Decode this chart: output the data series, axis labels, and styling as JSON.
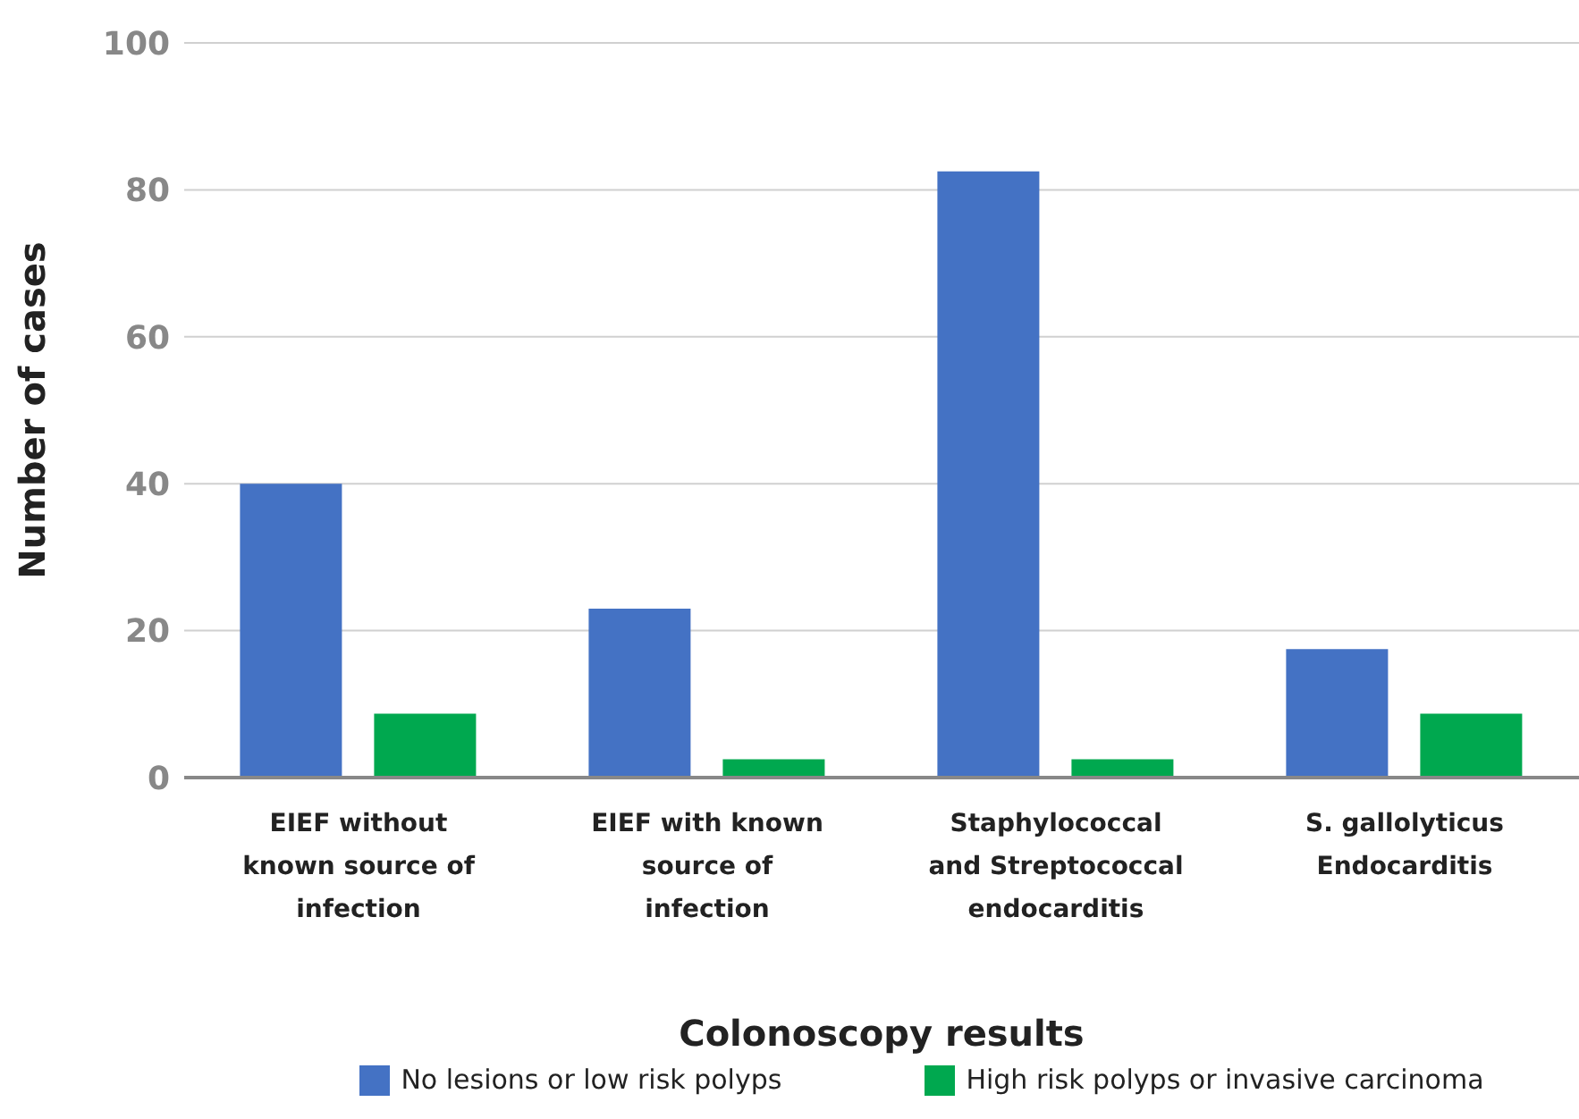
{
  "chart_data": {
    "type": "bar",
    "xlabel": "Colonoscopy results",
    "ylabel": "Number of cases",
    "categories": [
      "EIEF without known source of infection",
      "EIEF with known source of infection",
      "Staphylococcal and Streptococcal endocarditis",
      "S. gallolyticus Endocarditis"
    ],
    "series": [
      {
        "name": "No lesions or low risk polyps",
        "color": "#4472c4",
        "values": [
          40,
          23,
          82.5,
          17.5
        ]
      },
      {
        "name": "High risk polyps or invasive carcinoma",
        "color": "#00a84f",
        "values": [
          8.7,
          2.5,
          2.5,
          8.7
        ]
      }
    ],
    "ylim": [
      0,
      100
    ],
    "yticks": [
      0,
      20,
      40,
      60,
      80,
      100
    ],
    "grid": "y",
    "legend": "bottom"
  }
}
